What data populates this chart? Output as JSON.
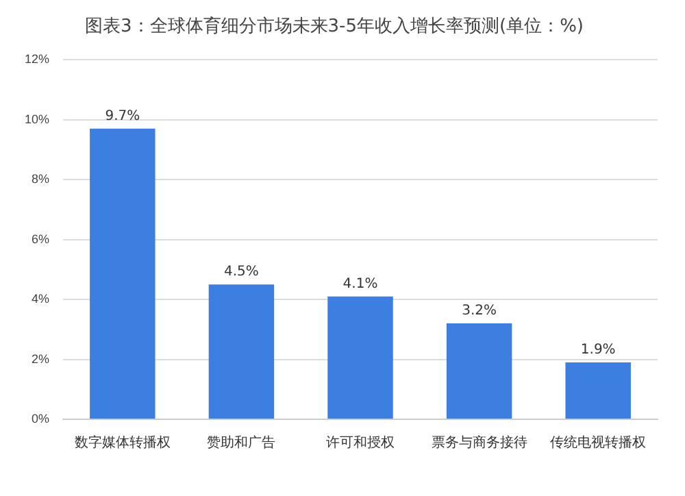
{
  "chart_data": {
    "type": "bar",
    "title": "图表3：全球体育细分市场未来3-5年收入增长率预测(单位：%)",
    "categories": [
      "数字媒体转播权",
      "赞助和广告",
      "许可和授权",
      "票务与商务接待",
      "传统电视转播权"
    ],
    "values": [
      9.7,
      4.5,
      4.1,
      3.2,
      1.9
    ],
    "color": "#3d7fe0",
    "value_labels": [
      "9.7%",
      "4.5%",
      "4.1%",
      "3.2%",
      "1.9%"
    ],
    "ylim": [
      0,
      12
    ],
    "yticks": [
      {
        "value": 0,
        "label": "0%"
      },
      {
        "value": 2,
        "label": "2%"
      },
      {
        "value": 4,
        "label": "4%"
      },
      {
        "value": 6,
        "label": "6%"
      },
      {
        "value": 8,
        "label": "8%"
      },
      {
        "value": 10,
        "label": "10%"
      },
      {
        "value": 12,
        "label": "12%"
      }
    ],
    "grid": "y",
    "legend": false
  }
}
